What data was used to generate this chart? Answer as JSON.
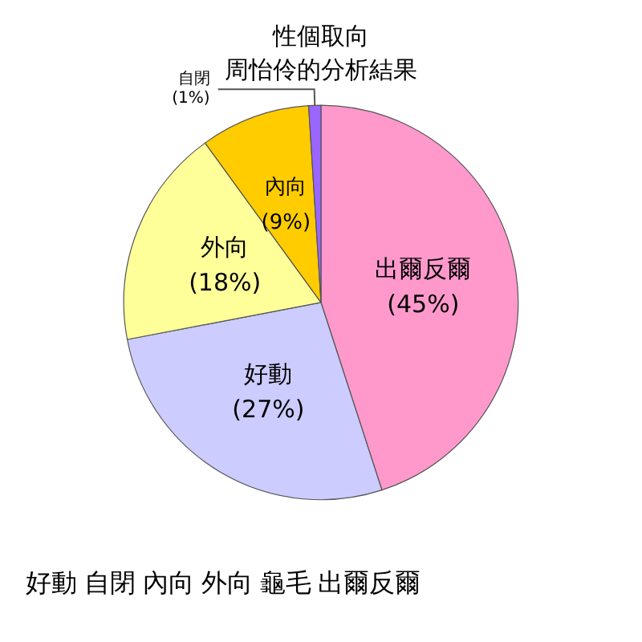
{
  "chart_data": {
    "type": "pie",
    "title": "性個取向",
    "subtitle": "周怡伶的分析結果",
    "categories": [
      "出爾反爾",
      "好動",
      "外向",
      "內向",
      "自閉"
    ],
    "values": [
      45,
      27,
      18,
      9,
      1
    ],
    "colors": [
      "#ff99cc",
      "#ccccff",
      "#ffff99",
      "#ffcc00",
      "#9966ff"
    ],
    "value_labels": [
      "(45%)",
      "(27%)",
      "(18%)",
      "(9%)",
      "(1%)"
    ],
    "annotations": [
      "好動 自閉 內向 外向 龜毛 出爾反爾"
    ]
  }
}
